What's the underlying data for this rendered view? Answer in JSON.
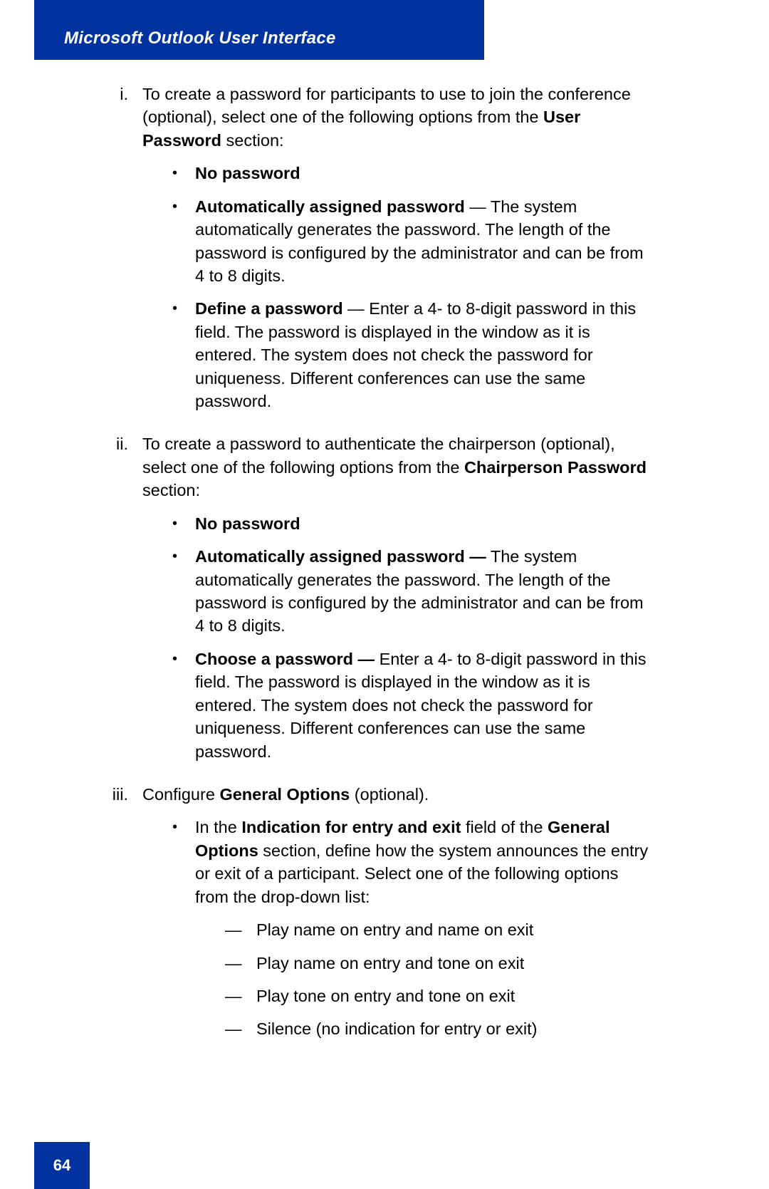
{
  "header": {
    "title": "Microsoft Outlook User Interface"
  },
  "page_number": "64",
  "colors": {
    "header_bg": "#0033a0",
    "header_text": "#ffffff",
    "body_text": "#000000",
    "page_bg": "#ffffff"
  },
  "typography": {
    "header_font_size": 24,
    "body_font_size": 23.5,
    "page_number_font_size": 22,
    "line_height": 1.38
  },
  "items": {
    "i": {
      "marker": "i.",
      "intro_pre": "To create a password for participants to use to join the conference (optional), select one of the following options from the ",
      "intro_bold": "User Password",
      "intro_post": " section:",
      "bullets": {
        "b1": {
          "bold": "No password",
          "rest": ""
        },
        "b2": {
          "bold": "Automatically assigned password",
          "sep": " — ",
          "rest": "The system automatically generates the password. The length of the password is configured by the administrator and can be from 4 to 8 digits."
        },
        "b3": {
          "bold": "Define a password",
          "sep": " — ",
          "rest": "Enter a 4- to 8-digit password in this field. The password is displayed in the window as it is entered. The system does not check the password for uniqueness. Different conferences can use the same password."
        }
      }
    },
    "ii": {
      "marker": "ii.",
      "intro_pre": "To create a password to authenticate the chairperson (optional), select one of the following options from the ",
      "intro_bold": "Chairperson Password",
      "intro_post": " section:",
      "bullets": {
        "b1": {
          "bold": "No password",
          "rest": ""
        },
        "b2": {
          "bold": "Automatically assigned password —",
          "sep": " ",
          "rest": "The system automatically generates the password. The length of the password is configured by the administrator and can be from 4 to 8 digits."
        },
        "b3": {
          "bold": "Choose a password —",
          "sep": " ",
          "rest": "Enter a 4- to 8-digit password in this field. The password is displayed in the window as it is entered. The system does not check the password for uniqueness. Different conferences can use the same password."
        }
      }
    },
    "iii": {
      "marker": "iii.",
      "intro_pre": "Configure ",
      "intro_bold": "General Options",
      "intro_post": " (optional).",
      "bullet_intro": {
        "pre": "In the ",
        "bold1": "Indication for entry and exit",
        "mid": " field of the ",
        "bold2": "General Options",
        "post": " section, define how the system announces the entry or exit of a participant. Select one of the following options from the drop-down list:"
      },
      "dashes": {
        "d1": "Play name on entry and name on exit",
        "d2": "Play name on entry and tone on exit",
        "d3": "Play tone on entry and tone on exit",
        "d4": "Silence (no indication for entry or exit)"
      }
    }
  },
  "markers": {
    "bullet": "•",
    "dash": "—"
  }
}
